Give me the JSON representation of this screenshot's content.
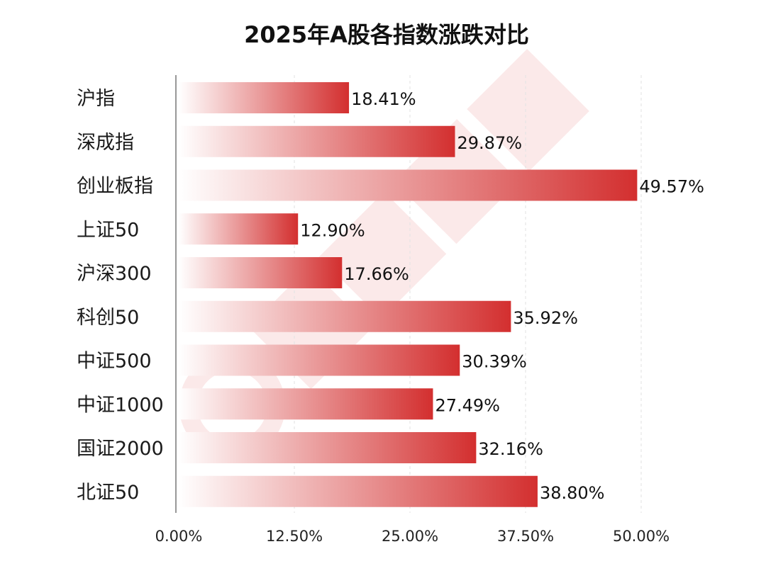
{
  "colors": {
    "bar_start": "#ffffff",
    "bar_end": "#d32f2f",
    "watermark": "#fbe9e9"
  },
  "chart_data": {
    "type": "bar",
    "orientation": "horizontal",
    "title": "2025年A股各指数涨跌对比",
    "categories": [
      "沪指",
      "深成指",
      "创业板指",
      "上证50",
      "沪深300",
      "科创50",
      "中证500",
      "中证1000",
      "国证2000",
      "北证50"
    ],
    "values": [
      18.41,
      29.87,
      49.57,
      12.9,
      17.66,
      35.92,
      30.39,
      27.49,
      32.16,
      38.8
    ],
    "value_labels": [
      "18.41%",
      "29.87%",
      "49.57%",
      "12.90%",
      "17.66%",
      "35.92%",
      "30.39%",
      "27.49%",
      "32.16%",
      "38.80%"
    ],
    "x_ticks": [
      0,
      12.5,
      25,
      37.5,
      50
    ],
    "x_tick_labels": [
      "0.00%",
      "12.50%",
      "25.00%",
      "37.50%",
      "50.00%"
    ],
    "xlim": [
      0,
      50
    ],
    "xlabel": "",
    "ylabel": "",
    "grid": true,
    "legend": "none"
  }
}
